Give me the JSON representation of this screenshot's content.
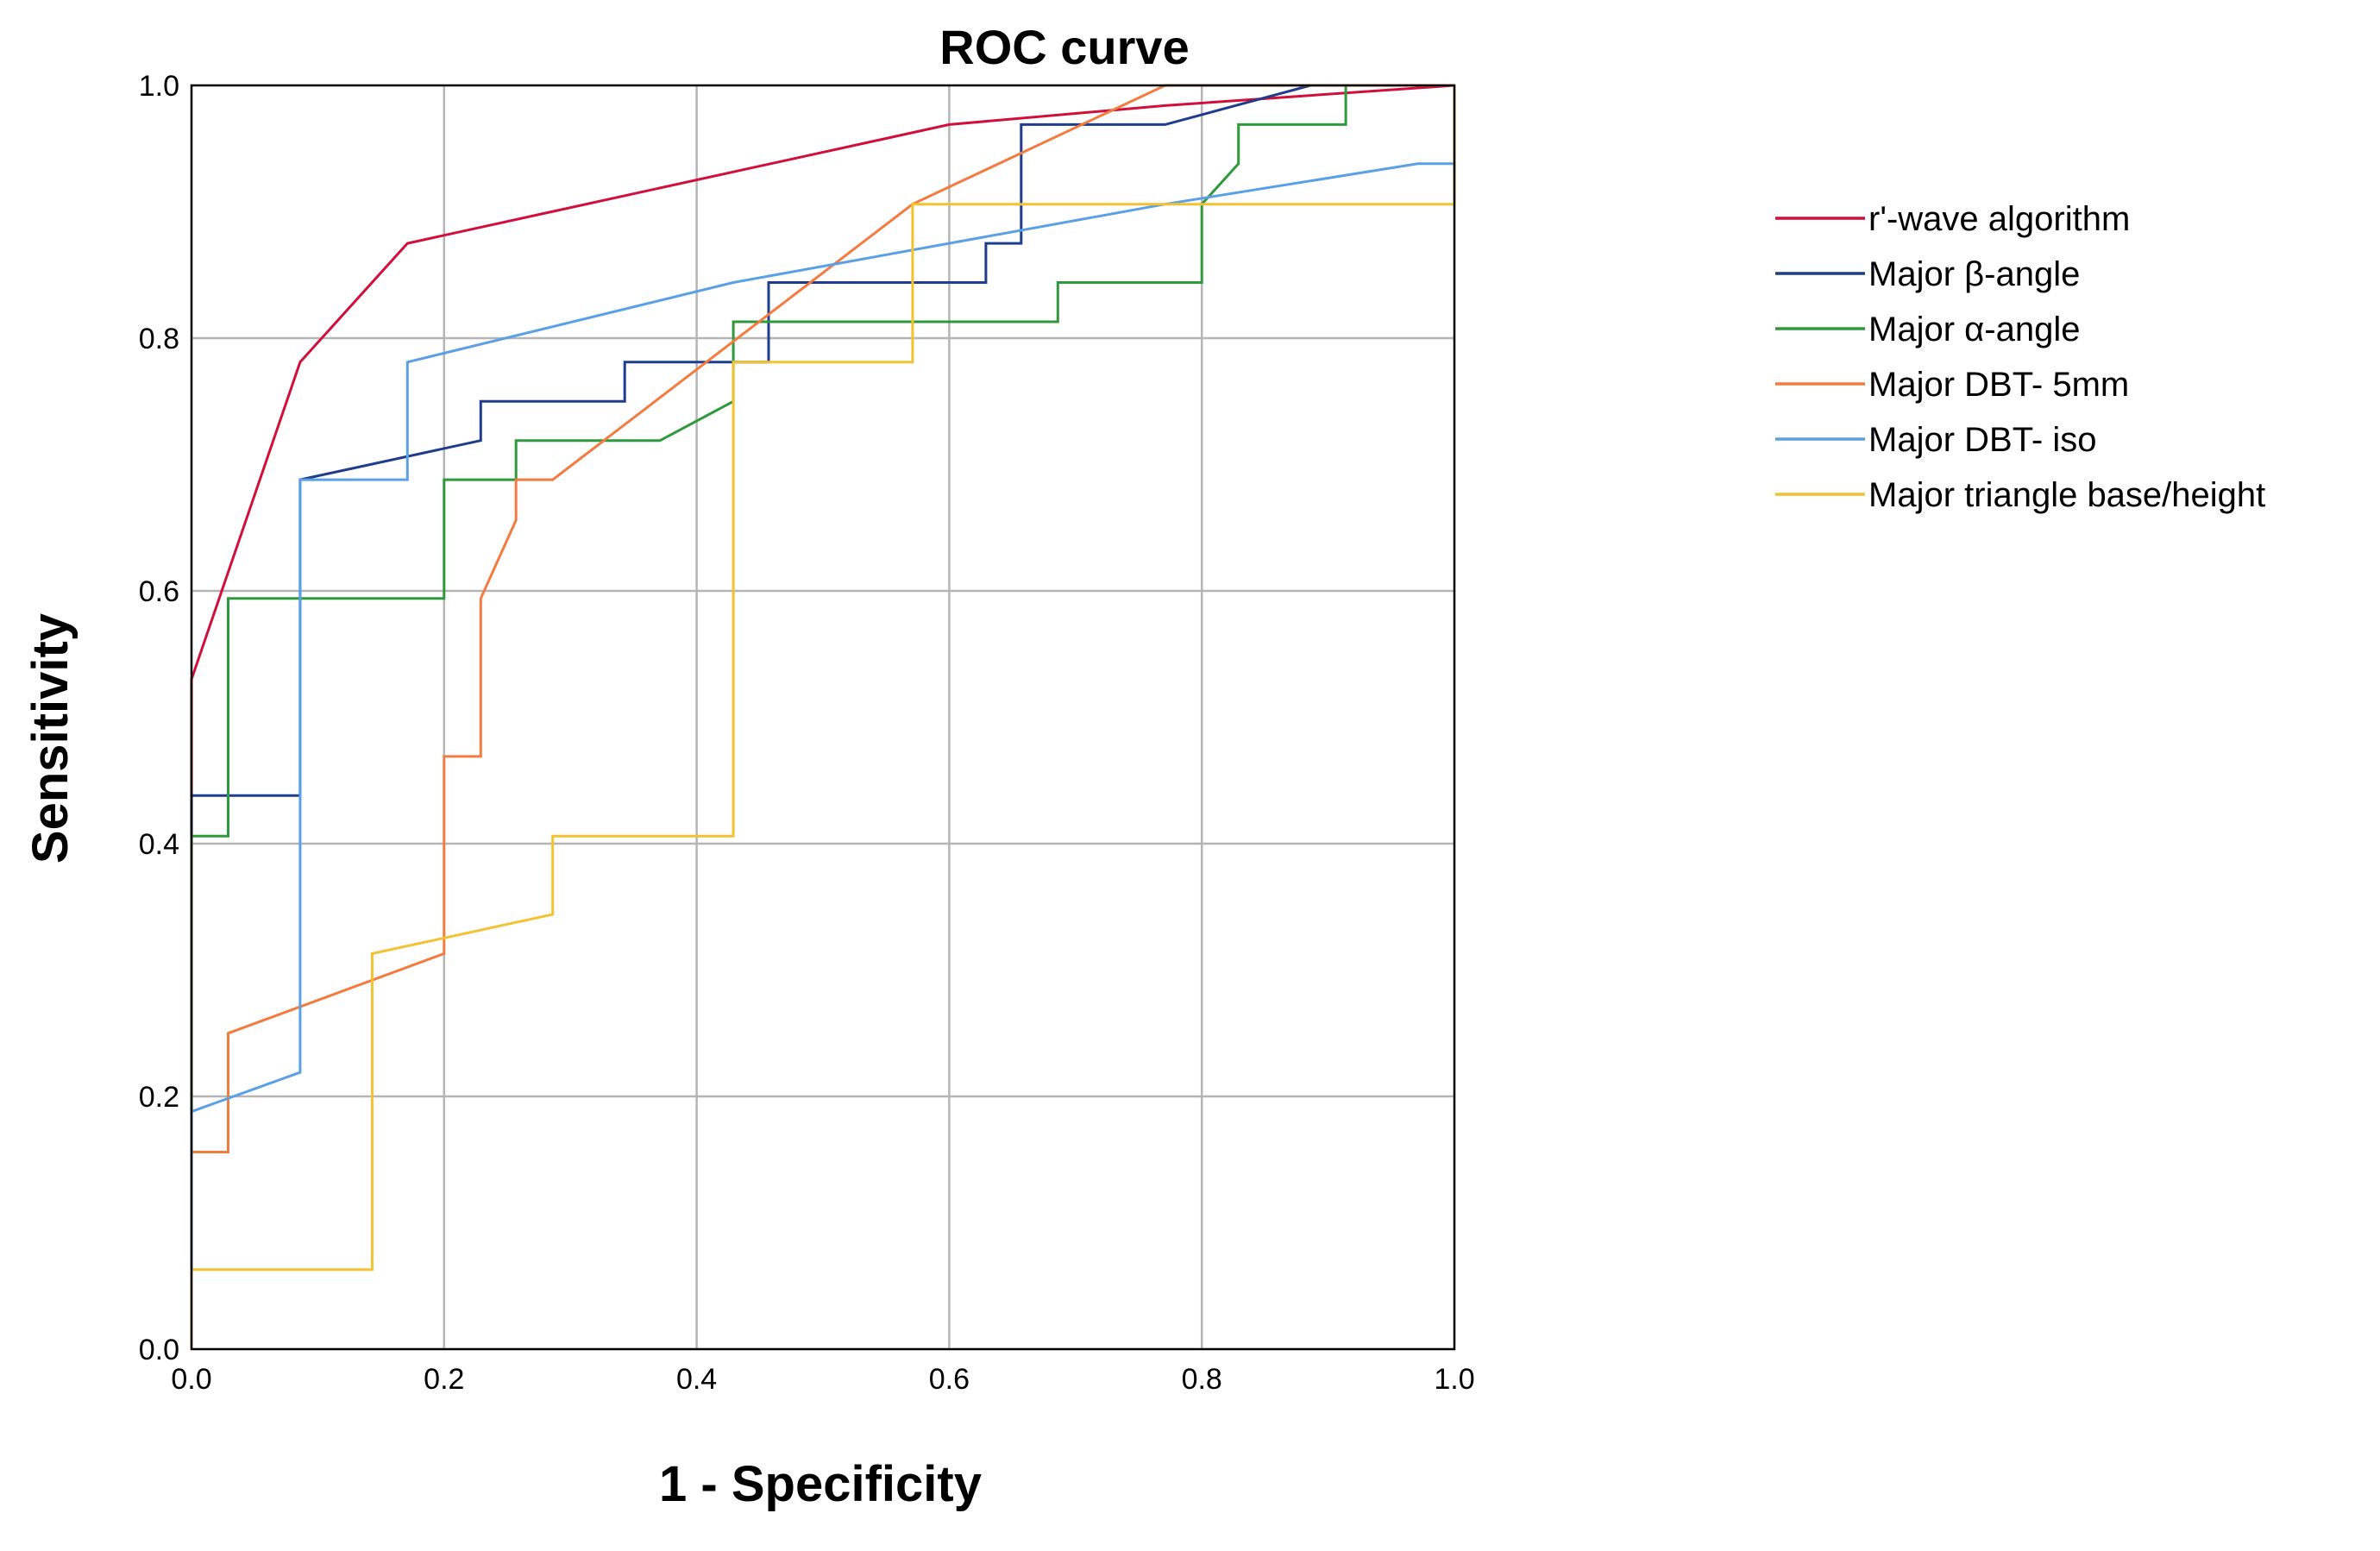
{
  "chart_data": {
    "type": "line",
    "title": "ROC curve",
    "xlabel": "1 - Specificity",
    "ylabel": "Sensitivity",
    "xlim": [
      0,
      1
    ],
    "ylim": [
      0,
      1
    ],
    "grid": true,
    "legend_position": "right",
    "x_ticks": [
      "0.0",
      "0.2",
      "0.4",
      "0.6",
      "0.8",
      "1.0"
    ],
    "y_ticks": [
      "0.0",
      "0.2",
      "0.4",
      "0.6",
      "0.8",
      "1.0"
    ],
    "series": [
      {
        "name": "r'-wave algorithm",
        "color": "#d0103a",
        "points": [
          [
            0,
            0
          ],
          [
            0,
            0.53
          ],
          [
            0.086,
            0.781
          ],
          [
            0.171,
            0.875
          ],
          [
            0.6,
            0.969
          ],
          [
            0.771,
            0.984
          ],
          [
            1,
            1
          ]
        ]
      },
      {
        "name": "Major β-angle",
        "color": "#1f3d8c",
        "points": [
          [
            0,
            0
          ],
          [
            0,
            0.438
          ],
          [
            0.086,
            0.438
          ],
          [
            0.086,
            0.688
          ],
          [
            0.229,
            0.719
          ],
          [
            0.229,
            0.75
          ],
          [
            0.343,
            0.75
          ],
          [
            0.343,
            0.781
          ],
          [
            0.457,
            0.781
          ],
          [
            0.457,
            0.844
          ],
          [
            0.629,
            0.844
          ],
          [
            0.629,
            0.875
          ],
          [
            0.657,
            0.875
          ],
          [
            0.657,
            0.969
          ],
          [
            0.771,
            0.969
          ],
          [
            0.886,
            1
          ],
          [
            1,
            1
          ]
        ]
      },
      {
        "name": "Major α-angle",
        "color": "#2e9a3c",
        "points": [
          [
            0,
            0
          ],
          [
            0,
            0.406
          ],
          [
            0.029,
            0.406
          ],
          [
            0.029,
            0.594
          ],
          [
            0.2,
            0.594
          ],
          [
            0.2,
            0.688
          ],
          [
            0.257,
            0.688
          ],
          [
            0.257,
            0.719
          ],
          [
            0.371,
            0.719
          ],
          [
            0.429,
            0.75
          ],
          [
            0.429,
            0.813
          ],
          [
            0.686,
            0.813
          ],
          [
            0.686,
            0.844
          ],
          [
            0.8,
            0.844
          ],
          [
            0.8,
            0.906
          ],
          [
            0.829,
            0.938
          ],
          [
            0.829,
            0.969
          ],
          [
            0.914,
            0.969
          ],
          [
            0.914,
            1
          ],
          [
            1,
            1
          ]
        ]
      },
      {
        "name": "Major DBT- 5mm",
        "color": "#f47b3f",
        "points": [
          [
            0,
            0
          ],
          [
            0,
            0.156
          ],
          [
            0.029,
            0.156
          ],
          [
            0.029,
            0.25
          ],
          [
            0.2,
            0.313
          ],
          [
            0.2,
            0.469
          ],
          [
            0.229,
            0.469
          ],
          [
            0.229,
            0.594
          ],
          [
            0.257,
            0.656
          ],
          [
            0.257,
            0.688
          ],
          [
            0.286,
            0.688
          ],
          [
            0.571,
            0.906
          ],
          [
            0.771,
            1
          ],
          [
            1,
            1
          ]
        ]
      },
      {
        "name": "Major DBT- iso",
        "color": "#5aa0e6",
        "points": [
          [
            0,
            0
          ],
          [
            0,
            0.188
          ],
          [
            0.086,
            0.219
          ],
          [
            0.086,
            0.688
          ],
          [
            0.171,
            0.688
          ],
          [
            0.171,
            0.781
          ],
          [
            0.429,
            0.844
          ],
          [
            0.771,
            0.906
          ],
          [
            0.971,
            0.938
          ],
          [
            1,
            0.938
          ],
          [
            1,
            1
          ]
        ]
      },
      {
        "name": "Major triangle base/height",
        "color": "#f2c230",
        "points": [
          [
            0,
            0
          ],
          [
            0,
            0.063
          ],
          [
            0.143,
            0.063
          ],
          [
            0.143,
            0.313
          ],
          [
            0.286,
            0.344
          ],
          [
            0.286,
            0.406
          ],
          [
            0.429,
            0.406
          ],
          [
            0.429,
            0.781
          ],
          [
            0.571,
            0.781
          ],
          [
            0.571,
            0.906
          ],
          [
            1,
            0.906
          ],
          [
            1,
            1
          ]
        ]
      }
    ]
  }
}
